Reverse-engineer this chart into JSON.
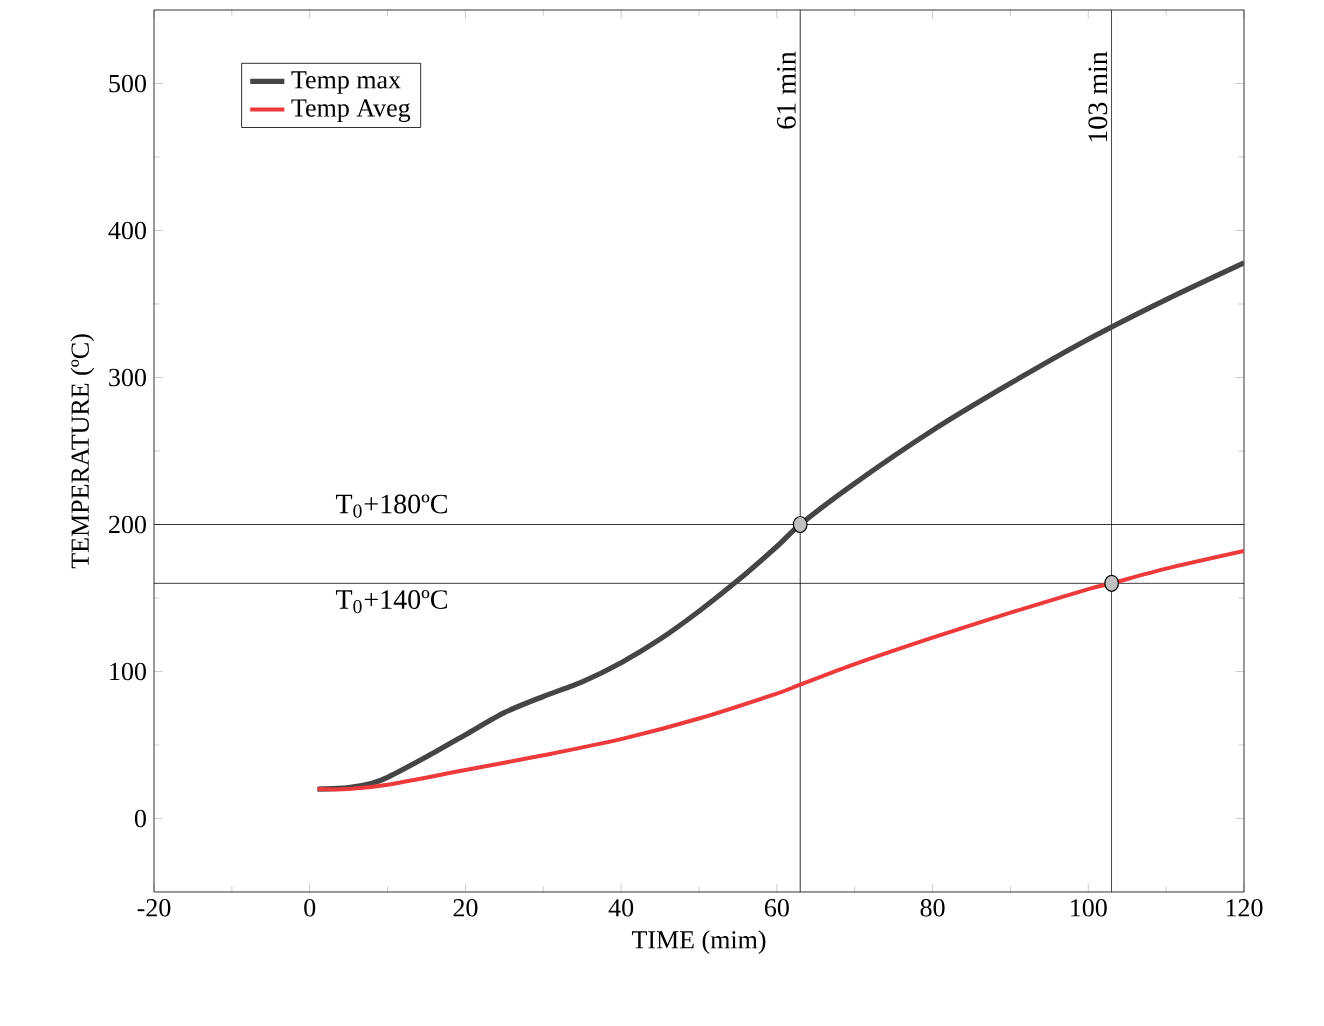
{
  "chart_data": {
    "type": "line",
    "xlabel": "TIME (mim)",
    "ylabel": "TEMPERATURE (ºC)",
    "xlim": [
      -20,
      120
    ],
    "xticks": [
      -20,
      0,
      20,
      40,
      60,
      80,
      100,
      120
    ],
    "ylim": [
      -50,
      550
    ],
    "yticks": [
      0,
      100,
      200,
      300,
      400,
      500
    ],
    "legend": "top left",
    "grid": false,
    "marker": "none",
    "line_style": "solid",
    "series": [
      {
        "name": "Temp max",
        "color": "#454545",
        "x": [
          1,
          5,
          8,
          10,
          15,
          20,
          25,
          30,
          35,
          40,
          45,
          50,
          55,
          60,
          63,
          70,
          80,
          90,
          100,
          110,
          120
        ],
        "values": [
          20,
          21,
          24,
          28,
          42,
          57,
          72,
          83,
          93,
          106,
          122,
          141,
          162,
          185,
          200,
          228,
          264,
          296,
          326,
          353,
          378
        ]
      },
      {
        "name": "Temp Aveg",
        "color": "#ee3a3a",
        "x": [
          1,
          5,
          10,
          20,
          30,
          40,
          50,
          60,
          63,
          70,
          80,
          90,
          100,
          103,
          110,
          120
        ],
        "values": [
          20,
          20,
          23,
          33,
          43,
          54,
          68,
          85,
          91,
          105,
          123,
          140,
          156,
          160,
          170,
          182
        ]
      },
      {
        "type": "scatter",
        "marker": "circle",
        "color": "#c0c0c0",
        "x": [
          63,
          103
        ],
        "values": [
          200,
          160
        ]
      }
    ],
    "ref_lines": [
      {
        "axis": "x",
        "value": 63,
        "label": "61 min"
      },
      {
        "axis": "x",
        "value": 103,
        "label": "103 min"
      },
      {
        "axis": "y",
        "value": 200,
        "label": "T$_{0}$+180ºC"
      },
      {
        "axis": "y",
        "value": 160,
        "label": "T$_{0}$+140ºC"
      }
    ]
  }
}
